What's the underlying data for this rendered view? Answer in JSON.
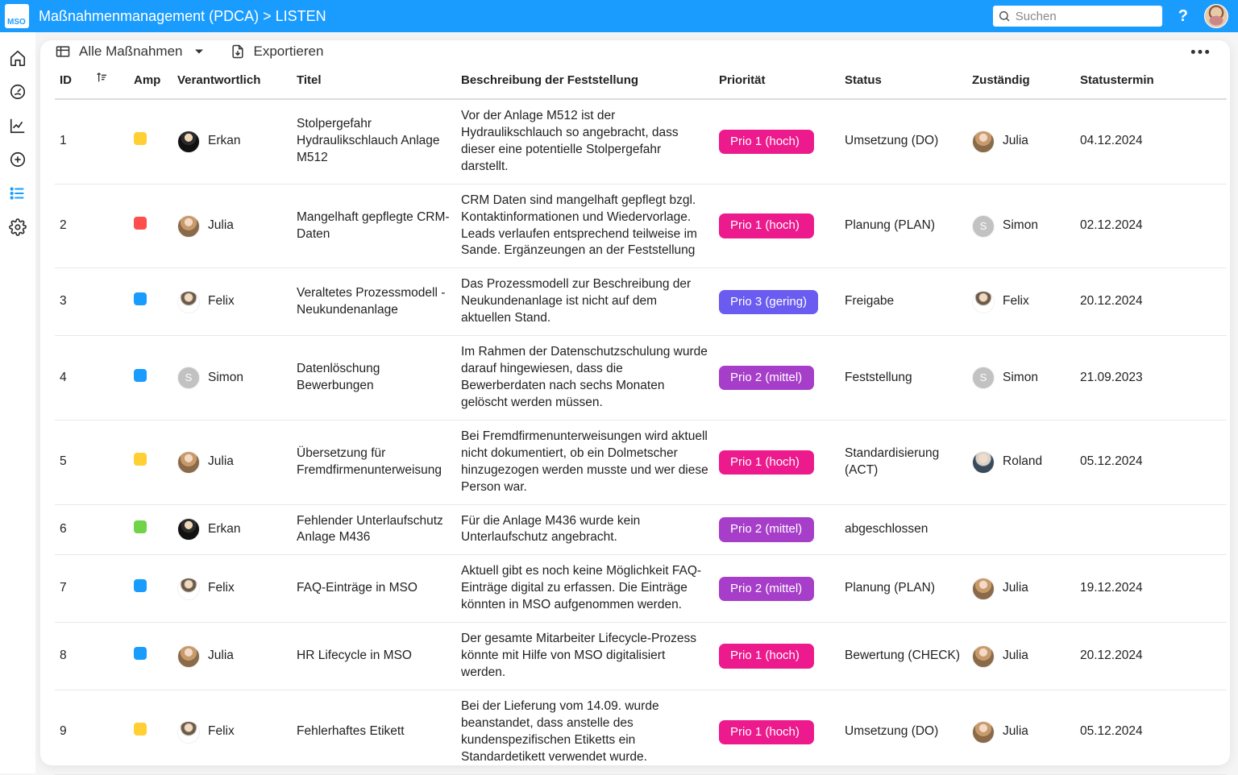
{
  "header": {
    "logo_text": "MSO",
    "breadcrumb": "Maßnahmenmanagement (PDCA) > LISTEN",
    "search_placeholder": "Suchen",
    "help_label": "?"
  },
  "toolbar": {
    "filter_label": "Alle Maßnahmen",
    "export_label": "Exportieren"
  },
  "colors": {
    "amp": {
      "yellow": "#ffcf33",
      "red": "#ff4d4d",
      "blue": "#1a9cff",
      "green": "#70d44b"
    },
    "prio": {
      "p1": "#ec1a8d",
      "p2": "#a63ec9",
      "p3": "#6a5cf0"
    },
    "avatar_placeholder": "#c2c2c2"
  },
  "avatar_gradients": {
    "Erkan": "radial-gradient(circle at 50% 30%, #f0d6b8 22%, #2b2b2b 23% 42%, #111 43%)",
    "Julia": "radial-gradient(circle at 50% 30%, #f3d9c6 22%, #c79a6b 23% 45%, #8a6a48 46%)",
    "Felix": "radial-gradient(circle at 50% 28%, #f1d8c0 20%, #6b5a48 26% 38%, #fff 46%)",
    "Roland": "radial-gradient(circle at 50% 30%, #f2dcc9 22%, #d7d2cb 28% 40%, #3a4a5a 46%)",
    "Simon": "#c2c2c2"
  },
  "avatar_placeholder_names": [
    "Simon"
  ],
  "columns": {
    "id": "ID",
    "amp": "Amp",
    "responsible": "Verantwortlich",
    "title": "Titel",
    "description": "Beschreibung der Feststellung",
    "priority": "Priorität",
    "status": "Status",
    "assigned": "Zuständig",
    "status_date": "Statustermin"
  },
  "priority_labels": {
    "p1": "Prio 1 (hoch)",
    "p2": "Prio 2 (mittel)",
    "p3": "Prio 3 (gering)"
  },
  "rows": [
    {
      "id": "1",
      "amp": "yellow",
      "responsible": "Erkan",
      "title": "Stolpergefahr Hydraulikschlauch Anlage M512",
      "description": "Vor der Anlage M512 ist der Hydraulikschlauch so angebracht, dass dieser eine potentielle Stolpergefahr darstellt.",
      "priority": "p1",
      "status": "Umsetzung (DO)",
      "assigned": "Julia",
      "date": "04.12.2024"
    },
    {
      "id": "2",
      "amp": "red",
      "responsible": "Julia",
      "title": "Mangelhaft gepflegte CRM-Daten",
      "description": "CRM Daten sind mangelhaft gepflegt bzgl. Kontaktinformationen und Wiedervorlage. Leads verlaufen entsprechend teilweise im Sande. Ergänzeungen an der Feststellung",
      "priority": "p1",
      "status": "Planung (PLAN)",
      "assigned": "Simon",
      "date": "02.12.2024"
    },
    {
      "id": "3",
      "amp": "blue",
      "responsible": "Felix",
      "title": "Veraltetes Prozessmodell - Neukundenanlage",
      "description": "Das Prozessmodell zur Beschreibung der Neukundenanlage ist nicht auf dem aktuellen Stand.",
      "priority": "p3",
      "status": "Freigabe",
      "assigned": "Felix",
      "date": "20.12.2024"
    },
    {
      "id": "4",
      "amp": "blue",
      "responsible": "Simon",
      "title": "Datenlöschung Bewerbungen",
      "description": "Im Rahmen der Datenschutzschulung wurde darauf hingewiesen, dass die Bewerberdaten nach sechs Monaten gelöscht werden müssen.",
      "priority": "p2",
      "status": "Feststellung",
      "assigned": "Simon",
      "date": "21.09.2023"
    },
    {
      "id": "5",
      "amp": "yellow",
      "responsible": "Julia",
      "title": "Übersetzung für Fremdfirmenunterweisung",
      "description": "Bei Fremdfirmenunterweisungen wird aktuell nicht dokumentiert, ob ein Dolmetscher hinzugezogen werden musste und wer diese Person war.",
      "priority": "p1",
      "status": "Standardisierung (ACT)",
      "assigned": "Roland",
      "date": "05.12.2024"
    },
    {
      "id": "6",
      "amp": "green",
      "responsible": "Erkan",
      "title": "Fehlender Unterlaufschutz Anlage M436",
      "description": "Für die Anlage M436 wurde kein Unterlaufschutz angebracht.",
      "priority": "p2",
      "status": "abgeschlossen",
      "assigned": "",
      "date": ""
    },
    {
      "id": "7",
      "amp": "blue",
      "responsible": "Felix",
      "title": "FAQ-Einträge in MSO",
      "description": "Aktuell gibt es noch keine Möglichkeit FAQ-Einträge digital zu erfassen. Die Einträge könnten in MSO aufgenommen werden.",
      "priority": "p2",
      "status": "Planung (PLAN)",
      "assigned": "Julia",
      "date": "19.12.2024"
    },
    {
      "id": "8",
      "amp": "blue",
      "responsible": "Julia",
      "title": "HR Lifecycle in MSO",
      "description": "Der gesamte Mitarbeiter Lifecycle-Prozess könnte mit Hilfe von MSO digitalisiert werden.",
      "priority": "p1",
      "status": "Bewertung (CHECK)",
      "assigned": "Julia",
      "date": "20.12.2024"
    },
    {
      "id": "9",
      "amp": "yellow",
      "responsible": "Felix",
      "title": "Fehlerhaftes Etikett",
      "description": "Bei der Lieferung vom 14.09. wurde beanstandet, dass anstelle des kundenspezifischen Etiketts ein Standardetikett verwendet wurde.",
      "priority": "p1",
      "status": "Umsetzung (DO)",
      "assigned": "Julia",
      "date": "05.12.2024"
    }
  ]
}
